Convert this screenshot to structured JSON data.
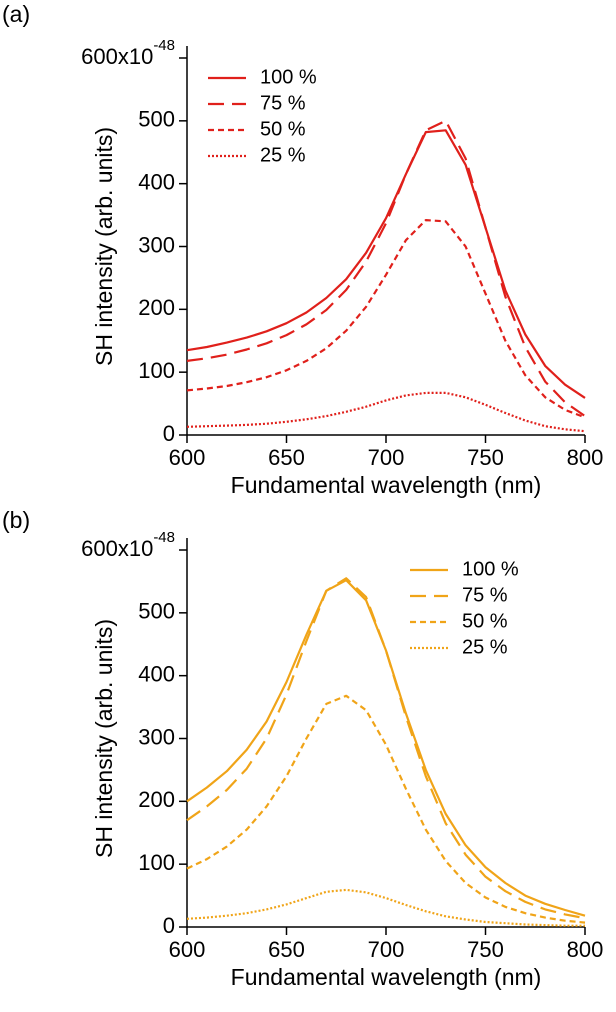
{
  "chart_data": [
    {
      "type": "line",
      "panel_label": "(a)",
      "x_label": "Fundamental wavelength (nm)",
      "y_label": "SH intensity (arb. units)",
      "x": [
        600,
        610,
        620,
        630,
        640,
        650,
        660,
        670,
        680,
        690,
        700,
        710,
        720,
        730,
        740,
        750,
        760,
        770,
        780,
        790,
        800
      ],
      "xlim": [
        600,
        800
      ],
      "xticks": [
        600,
        650,
        700,
        750,
        800
      ],
      "ylim": [
        0,
        600
      ],
      "yticks": [
        0,
        100,
        200,
        300,
        400,
        500,
        {
          "value": 600,
          "label": "600x10",
          "superscript": "-48"
        }
      ],
      "legend": "top-left",
      "series": [
        {
          "name": "100 %",
          "color": "#e0201b",
          "line_style": "solid",
          "values": [
            135,
            140,
            147,
            155,
            165,
            178,
            195,
            218,
            248,
            290,
            345,
            415,
            482,
            485,
            430,
            330,
            230,
            160,
            110,
            80,
            59
          ]
        },
        {
          "name": "75 %",
          "color": "#e0201b",
          "line_style": "dashed",
          "values": [
            118,
            122,
            128,
            136,
            146,
            159,
            176,
            199,
            231,
            276,
            337,
            415,
            485,
            500,
            440,
            330,
            220,
            140,
            85,
            52,
            30
          ]
        },
        {
          "name": "50 %",
          "color": "#e0201b",
          "line_style": "short-dashed",
          "values": [
            71,
            74,
            78,
            84,
            92,
            103,
            118,
            138,
            166,
            204,
            255,
            310,
            342,
            340,
            300,
            225,
            150,
            95,
            60,
            40,
            28
          ]
        },
        {
          "name": "25 %",
          "color": "#e0201b",
          "line_style": "dotted",
          "values": [
            13,
            14,
            15,
            16,
            18,
            21,
            25,
            30,
            37,
            45,
            55,
            63,
            67,
            67,
            60,
            48,
            35,
            23,
            14,
            9,
            6
          ]
        }
      ]
    },
    {
      "type": "line",
      "panel_label": "(b)",
      "x_label": "Fundamental wavelength (nm)",
      "y_label": "SH intensity (arb. units)",
      "x": [
        600,
        610,
        620,
        630,
        640,
        650,
        660,
        670,
        680,
        690,
        700,
        710,
        720,
        730,
        740,
        750,
        760,
        770,
        780,
        790,
        800
      ],
      "xlim": [
        600,
        800
      ],
      "xticks": [
        600,
        650,
        700,
        750,
        800
      ],
      "ylim": [
        0,
        600
      ],
      "yticks": [
        0,
        100,
        200,
        300,
        400,
        500,
        {
          "value": 600,
          "label": "600x10",
          "superscript": "-48"
        }
      ],
      "legend": "top-right",
      "series": [
        {
          "name": "100 %",
          "color": "#f0a418",
          "line_style": "solid",
          "values": [
            200,
            222,
            248,
            282,
            327,
            390,
            465,
            535,
            552,
            520,
            440,
            340,
            250,
            180,
            130,
            95,
            70,
            50,
            37,
            27,
            18
          ]
        },
        {
          "name": "75 %",
          "color": "#f0a418",
          "line_style": "dashed",
          "values": [
            170,
            192,
            218,
            252,
            300,
            370,
            455,
            535,
            555,
            525,
            440,
            335,
            240,
            165,
            115,
            80,
            57,
            40,
            28,
            20,
            14
          ]
        },
        {
          "name": "50 %",
          "color": "#f0a418",
          "line_style": "short-dashed",
          "values": [
            93,
            108,
            128,
            155,
            192,
            240,
            300,
            355,
            368,
            345,
            290,
            220,
            155,
            105,
            70,
            47,
            32,
            22,
            15,
            10,
            7
          ]
        },
        {
          "name": "25 %",
          "color": "#f0a418",
          "line_style": "dotted",
          "values": [
            13,
            15,
            18,
            22,
            28,
            36,
            46,
            56,
            59,
            55,
            46,
            35,
            25,
            17,
            12,
            8,
            6,
            4,
            3,
            2,
            2
          ]
        }
      ]
    }
  ]
}
